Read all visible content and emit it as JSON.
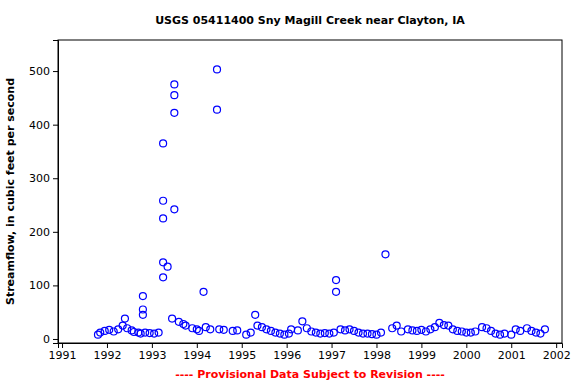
{
  "chart_data": {
    "type": "scatter",
    "title": "USGS 05411400 Sny Magill Creek near Clayton, IA",
    "y_label": "Streamflow, in cubic feet per second",
    "annotations": [
      "---- Provisional Data Subject to Revision ----"
    ],
    "color": "#0000ff",
    "marker": "circle",
    "grid": false,
    "xlim": [
      1990.91,
      2002.13
    ],
    "ylim": [
      -7.5,
      558
    ],
    "xticks": [
      1991,
      1992,
      1993,
      1994,
      1995,
      1996,
      1997,
      1998,
      1999,
      2000,
      2001,
      2002
    ],
    "yticks": [
      0,
      100,
      200,
      300,
      400,
      500
    ],
    "x": [
      1991.8,
      1991.85,
      1991.95,
      1992.05,
      1992.15,
      1992.25,
      1992.35,
      1992.4,
      1992.45,
      1992.55,
      1992.6,
      1992.7,
      1992.75,
      1992.8,
      1992.8,
      1992.8,
      1992.85,
      1992.95,
      1993.05,
      1993.15,
      1993.25,
      1993.25,
      1993.25,
      1993.25,
      1993.25,
      1993.35,
      1993.5,
      1993.5,
      1993.5,
      1993.5,
      1993.45,
      1993.6,
      1993.7,
      1993.75,
      1993.9,
      1994.0,
      1994.05,
      1994.15,
      1994.2,
      1994.3,
      1994.45,
      1994.45,
      1994.5,
      1994.6,
      1994.8,
      1994.9,
      1995.1,
      1995.2,
      1995.3,
      1995.35,
      1995.45,
      1995.55,
      1995.65,
      1995.75,
      1995.85,
      1995.95,
      1996.05,
      1996.1,
      1996.25,
      1996.35,
      1996.45,
      1996.55,
      1996.65,
      1996.75,
      1996.85,
      1996.95,
      1997.05,
      1997.1,
      1997.1,
      1997.2,
      1997.3,
      1997.4,
      1997.5,
      1997.6,
      1997.7,
      1997.8,
      1997.9,
      1998.0,
      1998.1,
      1998.2,
      1998.35,
      1998.45,
      1998.55,
      1998.7,
      1998.8,
      1998.9,
      1999.0,
      1999.1,
      1999.2,
      1999.3,
      1999.4,
      1999.5,
      1999.6,
      1999.7,
      1999.8,
      1999.9,
      2000.0,
      2000.1,
      2000.2,
      2000.35,
      2000.45,
      2000.55,
      2000.65,
      2000.75,
      2000.85,
      2001.0,
      2001.1,
      2001.2,
      2001.35,
      2001.45,
      2001.55,
      2001.65,
      2001.75
    ],
    "values": [
      8,
      12,
      15,
      17,
      14,
      18,
      25,
      38,
      20,
      16,
      13,
      12,
      10,
      80,
      55,
      45,
      12,
      11,
      10,
      12,
      365,
      258,
      225,
      143,
      115,
      135,
      475,
      455,
      422,
      242,
      38,
      32,
      28,
      25,
      20,
      18,
      15,
      88,
      22,
      18,
      503,
      428,
      18,
      17,
      15,
      16,
      8,
      12,
      45,
      25,
      22,
      18,
      15,
      12,
      10,
      8,
      10,
      18,
      16,
      33,
      20,
      14,
      12,
      10,
      11,
      10,
      12,
      110,
      88,
      18,
      16,
      18,
      15,
      12,
      10,
      10,
      9,
      8,
      12,
      158,
      20,
      25,
      14,
      18,
      16,
      15,
      17,
      14,
      18,
      22,
      30,
      26,
      25,
      18,
      15,
      14,
      12,
      12,
      14,
      22,
      20,
      15,
      10,
      8,
      10,
      8,
      18,
      15,
      20,
      15,
      12,
      10,
      18
    ]
  }
}
